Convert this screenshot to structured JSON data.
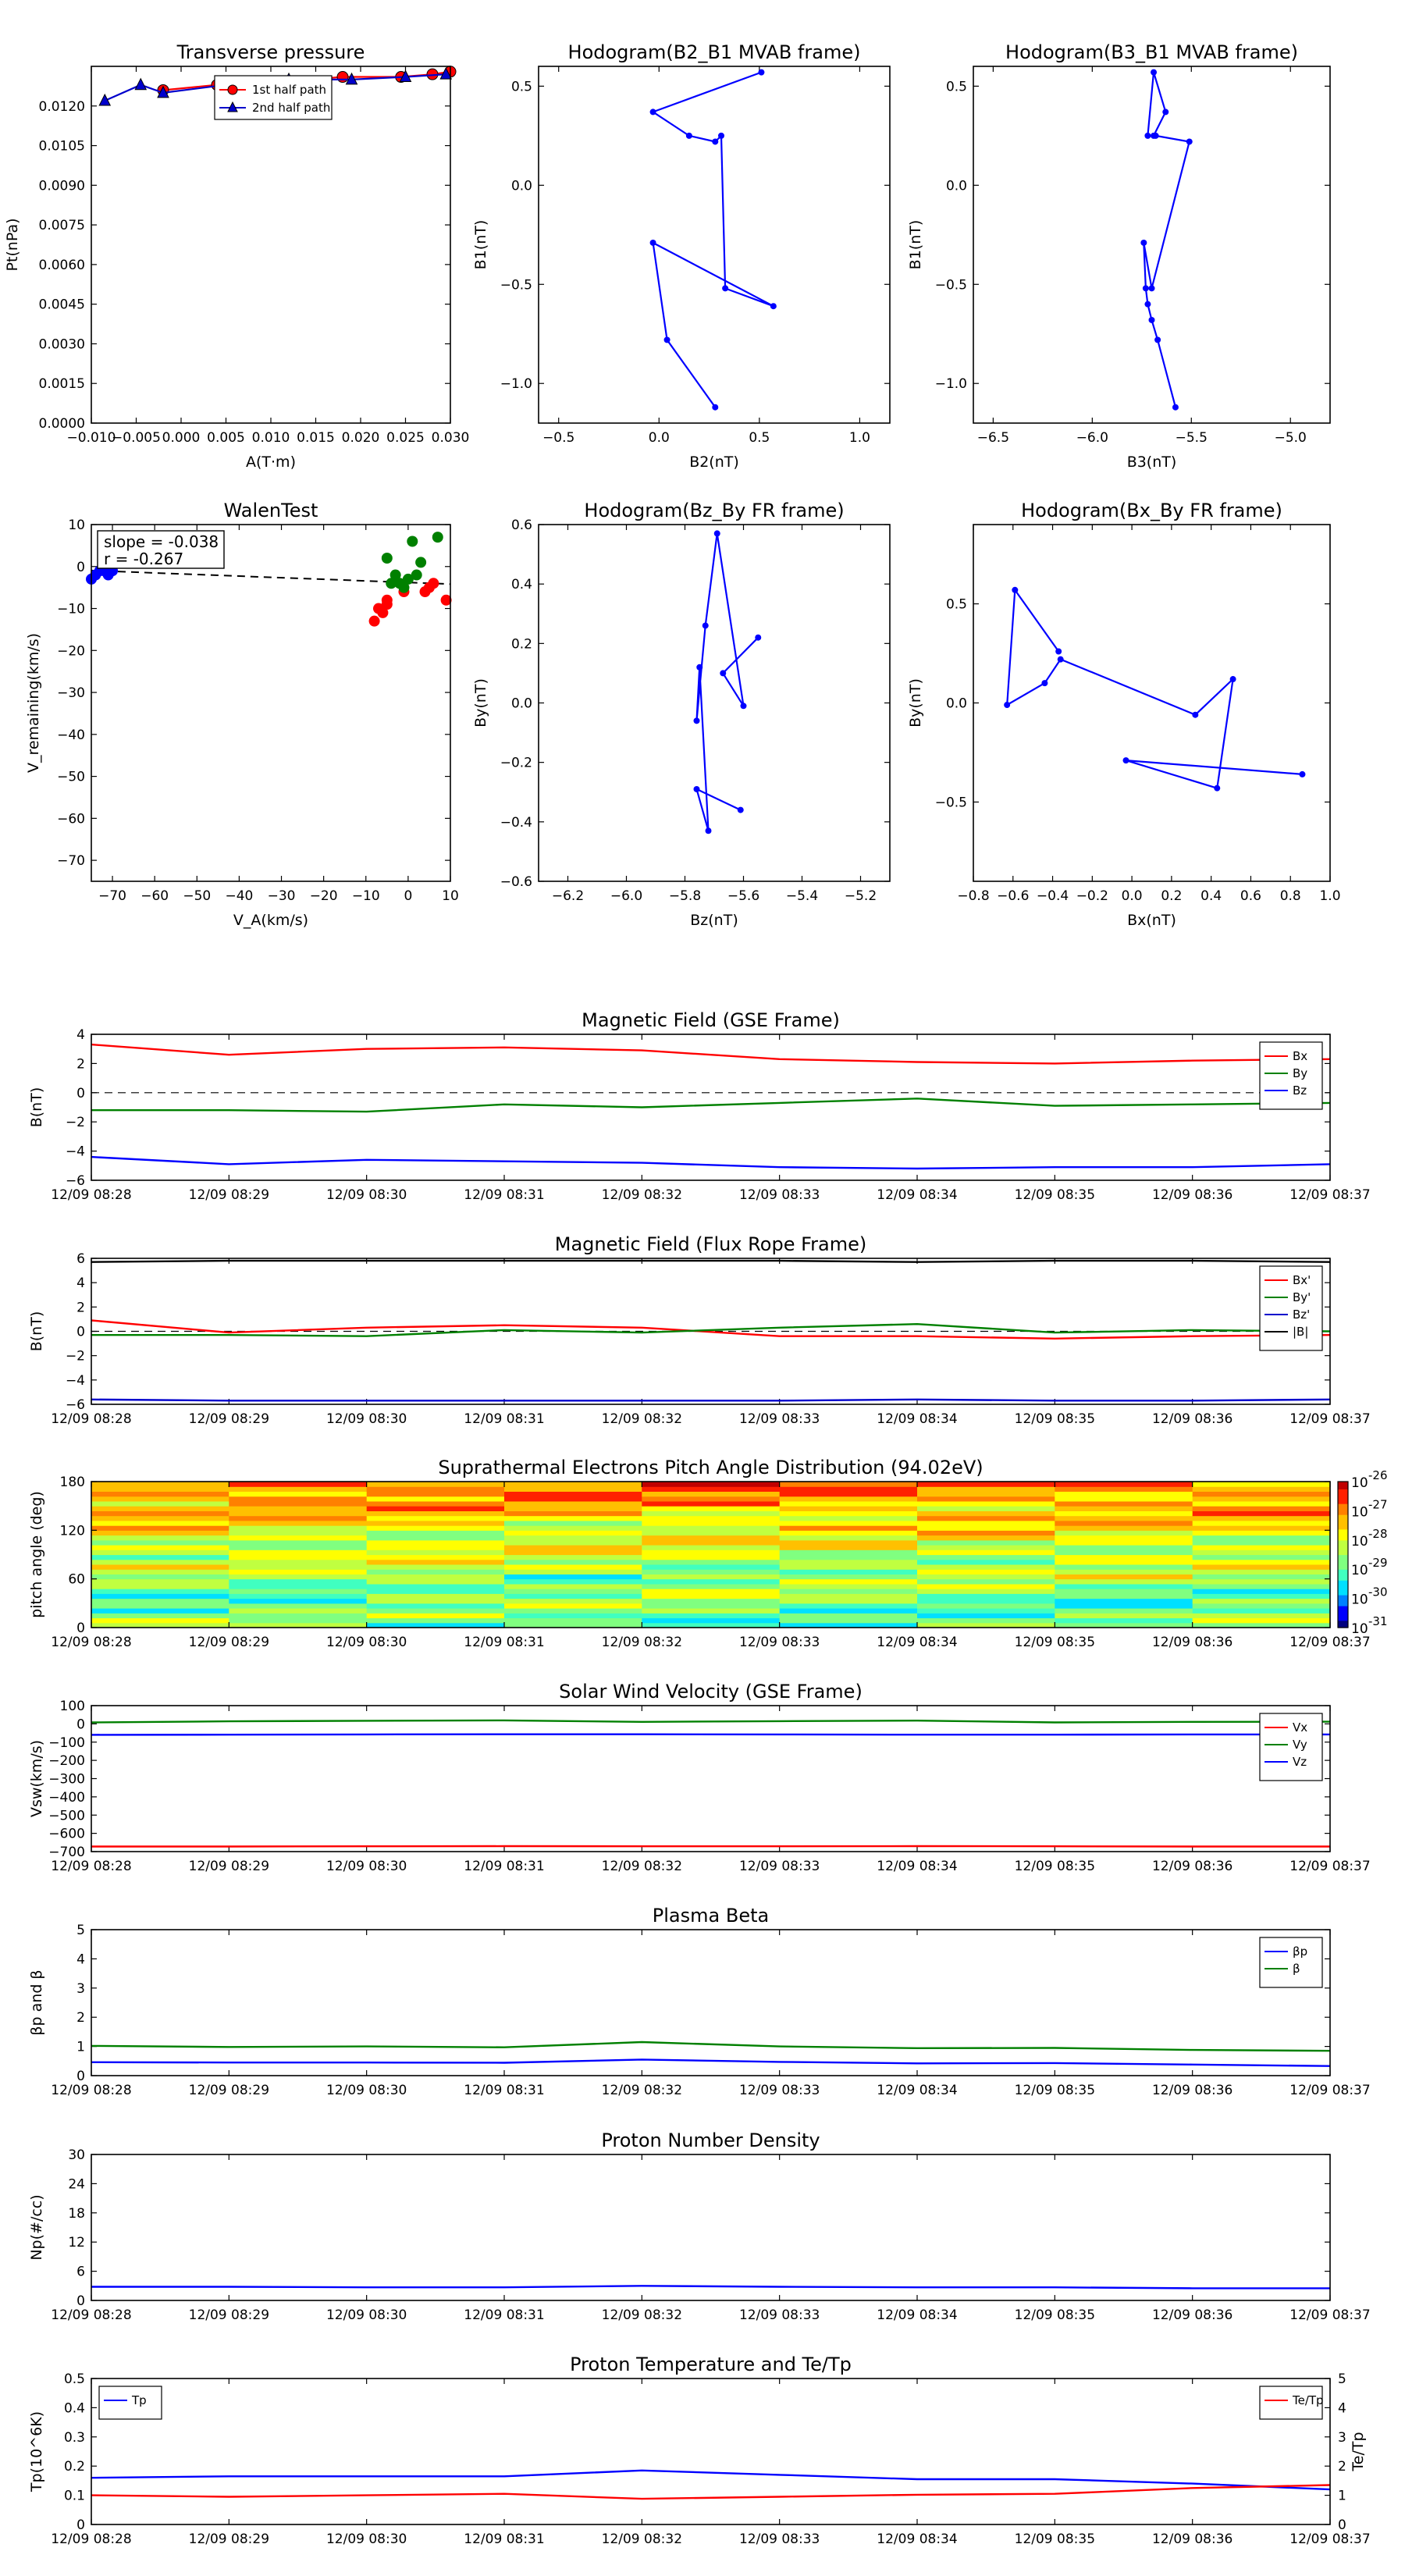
{
  "chart_data": [
    {
      "id": "tp",
      "type": "line",
      "title": "Transverse pressure",
      "xlabel": "A(T·m)",
      "ylabel": "Pt(nPa)",
      "xlim": [
        -0.01,
        0.03
      ],
      "ylim": [
        0,
        0.0135
      ],
      "xticks": [
        -0.01,
        -0.005,
        0.0,
        0.005,
        0.01,
        0.015,
        0.02,
        0.025,
        0.03
      ],
      "xticklabels": [
        "−0.010",
        "−0.005",
        "0.000",
        "0.005",
        "0.010",
        "0.015",
        "0.020",
        "0.025",
        "0.030"
      ],
      "yticks": [
        0,
        0.0015,
        0.003,
        0.0045,
        0.006,
        0.0075,
        0.009,
        0.0105,
        0.012
      ],
      "yticklabels": [
        "0.0000",
        "0.0015",
        "0.0030",
        "0.0045",
        "0.0060",
        "0.0075",
        "0.0090",
        "0.0105",
        "0.0120"
      ],
      "legend_loc": "upper-center",
      "series": [
        {
          "name": "1st half path",
          "color": "#ff0000",
          "marker": "circle",
          "x": [
            -0.002,
            0.004,
            0.011,
            0.018,
            0.0245,
            0.028,
            0.03
          ],
          "y": [
            0.0126,
            0.0128,
            0.0129,
            0.0131,
            0.0131,
            0.0132,
            0.0133
          ]
        },
        {
          "name": "2nd half path",
          "color": "#0000cc",
          "marker": "triangle",
          "x": [
            -0.0085,
            -0.0045,
            -0.002,
            0.005,
            0.012,
            0.019,
            0.025,
            0.0295
          ],
          "y": [
            0.0122,
            0.0128,
            0.0125,
            0.0128,
            0.013,
            0.013,
            0.0131,
            0.0132
          ]
        }
      ]
    },
    {
      "id": "h1",
      "type": "line",
      "title": "Hodogram(B2_B1 MVAB frame)",
      "xlabel": "B2(nT)",
      "ylabel": "B1(nT)",
      "xlim": [
        -0.6,
        1.15
      ],
      "ylim": [
        -1.2,
        0.6
      ],
      "xticks": [
        -0.5,
        0,
        0.5,
        1.0
      ],
      "xticklabels": [
        "−0.5",
        "0.0",
        "0.5",
        "1.0"
      ],
      "yticks": [
        -1.0,
        -0.5,
        0.0,
        0.5
      ],
      "yticklabels": [
        "−1.0",
        "−0.5",
        "0.0",
        "0.5"
      ],
      "series": [
        {
          "name": "hodogram",
          "color": "#0000ff",
          "marker": "dot",
          "x": [
            0.28,
            0.04,
            -0.03,
            0.57,
            0.33,
            0.31,
            0.28,
            0.15,
            -0.03,
            0.51
          ],
          "y": [
            -1.12,
            -0.78,
            -0.29,
            -0.61,
            -0.52,
            0.25,
            0.22,
            0.25,
            0.37,
            0.57
          ]
        }
      ]
    },
    {
      "id": "h2",
      "type": "line",
      "title": "Hodogram(B3_B1 MVAB frame)",
      "xlabel": "B3(nT)",
      "ylabel": "B1(nT)",
      "xlim": [
        -6.6,
        -4.8
      ],
      "ylim": [
        -1.2,
        0.6
      ],
      "xticks": [
        -6.5,
        -6.0,
        -5.5,
        -5.0
      ],
      "xticklabels": [
        "−6.5",
        "−6.0",
        "−5.5",
        "−5.0"
      ],
      "yticks": [
        -1.0,
        -0.5,
        0.0,
        0.5
      ],
      "yticklabels": [
        "−1.0",
        "−0.5",
        "0.0",
        "0.5"
      ],
      "series": [
        {
          "name": "hodogram",
          "color": "#0000ff",
          "marker": "dot",
          "x": [
            -5.58,
            -5.67,
            -5.7,
            -5.72,
            -5.73,
            -5.74,
            -5.7,
            -5.51,
            -5.68,
            -5.72,
            -5.69,
            -5.63,
            -5.69
          ],
          "y": [
            -1.12,
            -0.78,
            -0.68,
            -0.6,
            -0.52,
            -0.29,
            -0.52,
            0.22,
            0.25,
            0.25,
            0.57,
            0.37,
            0.25
          ]
        }
      ]
    },
    {
      "id": "walen",
      "type": "scatter",
      "title": "WalenTest",
      "xlabel": "V_A(km/s)",
      "ylabel": "V_remaining(km/s)",
      "xlim": [
        -75,
        10
      ],
      "ylim": [
        -75,
        10
      ],
      "xticks": [
        -70,
        -60,
        -50,
        -40,
        -30,
        -20,
        -10,
        0,
        10
      ],
      "xticklabels": [
        "−70",
        "−60",
        "−50",
        "−40",
        "−30",
        "−20",
        "−10",
        "0",
        "10"
      ],
      "yticks": [
        -70,
        -60,
        -50,
        -40,
        -30,
        -20,
        -10,
        0,
        10
      ],
      "yticklabels": [
        "−70",
        "−60",
        "−50",
        "−40",
        "−30",
        "−20",
        "−10",
        "0",
        "10"
      ],
      "annotation": [
        "slope = -0.038",
        "r = -0.267"
      ],
      "fit": {
        "slope": -0.038,
        "intercept": -3.8,
        "color": "#000000",
        "style": "dashed"
      },
      "series": [
        {
          "name": "red",
          "color": "#ff0000",
          "x": [
            -8,
            -7,
            -6,
            -5,
            -5,
            -1,
            4,
            5,
            6,
            9
          ],
          "y": [
            -13,
            -10,
            -11,
            -9,
            -8,
            -6,
            -6,
            -5,
            -4,
            -8
          ]
        },
        {
          "name": "green",
          "color": "#008000",
          "x": [
            -5,
            -4,
            -3,
            -2,
            -1,
            0,
            1,
            2,
            3,
            7
          ],
          "y": [
            2,
            -4,
            -2,
            -4,
            -5,
            -3,
            6,
            -2,
            1,
            7
          ]
        },
        {
          "name": "blue",
          "color": "#0000ff",
          "x": [
            -75,
            -72,
            -71,
            -70,
            -73,
            -74
          ],
          "y": [
            -3,
            -1,
            -2,
            -1,
            -1,
            -2
          ]
        }
      ]
    },
    {
      "id": "h3",
      "type": "line",
      "title": "Hodogram(Bz_By FR frame)",
      "xlabel": "Bz(nT)",
      "ylabel": "By(nT)",
      "xlim": [
        -6.3,
        -5.1
      ],
      "ylim": [
        -0.6,
        0.6
      ],
      "xticks": [
        -6.2,
        -6.0,
        -5.8,
        -5.6,
        -5.4,
        -5.2
      ],
      "xticklabels": [
        "−6.2",
        "−6.0",
        "−5.8",
        "−5.6",
        "−5.4",
        "−5.2"
      ],
      "yticks": [
        -0.6,
        -0.4,
        -0.2,
        0.0,
        0.2,
        0.4,
        0.6
      ],
      "yticklabels": [
        "−0.6",
        "−0.4",
        "−0.2",
        "0.0",
        "0.2",
        "0.4",
        "0.6"
      ],
      "series": [
        {
          "name": "hodogram",
          "color": "#0000ff",
          "marker": "dot",
          "x": [
            -5.61,
            -5.76,
            -5.72,
            -5.75,
            -5.76,
            -5.73,
            -5.69,
            -5.6,
            -5.67,
            -5.55
          ],
          "y": [
            -0.36,
            -0.29,
            -0.43,
            0.12,
            -0.06,
            0.26,
            0.57,
            -0.01,
            0.1,
            0.22
          ]
        }
      ]
    },
    {
      "id": "h4",
      "type": "line",
      "title": "Hodogram(Bx_By FR frame)",
      "xlabel": "Bx(nT)",
      "ylabel": "By(nT)",
      "xlim": [
        -0.8,
        1.0
      ],
      "ylim": [
        -0.9,
        0.9
      ],
      "xticks": [
        -0.8,
        -0.6,
        -0.4,
        -0.2,
        0.0,
        0.2,
        0.4,
        0.6,
        0.8,
        1.0
      ],
      "xticklabels": [
        "−0.8",
        "−0.6",
        "−0.4",
        "−0.2",
        "0.0",
        "0.2",
        "0.4",
        "0.6",
        "0.8",
        "1.0"
      ],
      "yticks": [
        -0.5,
        0.0,
        0.5
      ],
      "yticklabels": [
        "−0.5",
        "0.0",
        "0.5"
      ],
      "series": [
        {
          "name": "hodogram",
          "color": "#0000ff",
          "marker": "dot",
          "x": [
            0.86,
            -0.03,
            0.43,
            0.51,
            0.32,
            -0.36,
            -0.44,
            -0.63,
            -0.59,
            -0.37
          ],
          "y": [
            -0.36,
            -0.29,
            -0.43,
            0.12,
            -0.06,
            0.22,
            0.1,
            -0.01,
            0.57,
            0.26
          ]
        }
      ]
    },
    {
      "id": "bgse",
      "type": "line",
      "title": "Magnetic Field (GSE Frame)",
      "ylabel": "B(nT)",
      "ylim": [
        -6,
        4
      ],
      "yticks": [
        -6,
        -4,
        -2,
        0,
        2,
        4
      ],
      "yticklabels": [
        "−6",
        "−4",
        "−2",
        "0",
        "2",
        "4"
      ],
      "categories": [
        "12/09 08:28",
        "12/09 08:29",
        "12/09 08:30",
        "12/09 08:31",
        "12/09 08:32",
        "12/09 08:33",
        "12/09 08:34",
        "12/09 08:35",
        "12/09 08:36",
        "12/09 08:37"
      ],
      "zero_line": true,
      "legend_loc": "upper-right",
      "series": [
        {
          "name": "Bx",
          "color": "#ff0000",
          "values": [
            3.3,
            2.6,
            3.0,
            3.1,
            2.9,
            2.3,
            2.1,
            2.0,
            2.2,
            2.3
          ]
        },
        {
          "name": "By",
          "color": "#008000",
          "values": [
            -1.2,
            -1.2,
            -1.3,
            -0.8,
            -1.0,
            -0.7,
            -0.4,
            -0.9,
            -0.8,
            -0.7
          ]
        },
        {
          "name": "Bz",
          "color": "#0000ff",
          "values": [
            -4.4,
            -4.9,
            -4.6,
            -4.7,
            -4.8,
            -5.1,
            -5.2,
            -5.1,
            -5.1,
            -4.9
          ]
        }
      ]
    },
    {
      "id": "bfr",
      "type": "line",
      "title": "Magnetic Field (Flux Rope Frame)",
      "ylabel": "B(nT)",
      "ylim": [
        -6,
        6
      ],
      "yticks": [
        -6,
        -4,
        -2,
        0,
        2,
        4,
        6
      ],
      "yticklabels": [
        "−6",
        "−4",
        "−2",
        "0",
        "2",
        "4",
        "6"
      ],
      "categories": [
        "12/09 08:28",
        "12/09 08:29",
        "12/09 08:30",
        "12/09 08:31",
        "12/09 08:32",
        "12/09 08:33",
        "12/09 08:34",
        "12/09 08:35",
        "12/09 08:36",
        "12/09 08:37"
      ],
      "zero_line": true,
      "legend_loc": "upper-right",
      "series": [
        {
          "name": "Bx'",
          "color": "#ff0000",
          "values": [
            0.9,
            -0.1,
            0.3,
            0.5,
            0.3,
            -0.4,
            -0.4,
            -0.6,
            -0.4,
            -0.3
          ]
        },
        {
          "name": "By'",
          "color": "#008000",
          "values": [
            -0.3,
            -0.3,
            -0.4,
            0.1,
            -0.1,
            0.3,
            0.6,
            -0.1,
            0.1,
            0.0
          ]
        },
        {
          "name": "Bz'",
          "color": "#0000cc",
          "values": [
            -5.6,
            -5.7,
            -5.7,
            -5.7,
            -5.7,
            -5.7,
            -5.6,
            -5.7,
            -5.7,
            -5.6
          ]
        },
        {
          "name": "|B|",
          "color": "#000000",
          "values": [
            5.7,
            5.8,
            5.8,
            5.8,
            5.8,
            5.8,
            5.7,
            5.8,
            5.8,
            5.7
          ]
        }
      ]
    },
    {
      "id": "pad",
      "type": "heatmap",
      "title": "Suprathermal Electrons Pitch Angle Distribution (94.02eV)",
      "ylabel": "pitch angle (deg)",
      "ylim": [
        0,
        180
      ],
      "yticks": [
        0,
        60,
        120,
        180
      ],
      "yticklabels": [
        "0",
        "60",
        "120",
        "180"
      ],
      "categories": [
        "12/09 08:28",
        "12/09 08:29",
        "12/09 08:30",
        "12/09 08:31",
        "12/09 08:32",
        "12/09 08:33",
        "12/09 08:34",
        "12/09 08:35",
        "12/09 08:36",
        "12/09 08:37"
      ],
      "colorbar": {
        "min_exp": -31,
        "max_exp": -26,
        "labels": [
          "10",
          "10",
          "10",
          "10",
          "10",
          "10"
        ],
        "exponents": [
          "-31",
          "-30",
          "-29",
          "-28",
          "-27",
          "-26"
        ]
      }
    },
    {
      "id": "vsw",
      "type": "line",
      "title": "Solar Wind Velocity (GSE Frame)",
      "ylabel": "Vsw(km/s)",
      "ylim": [
        -700,
        100
      ],
      "yticks": [
        -700,
        -600,
        -500,
        -400,
        -300,
        -200,
        -100,
        0,
        100
      ],
      "yticklabels": [
        "−700",
        "−600",
        "−500",
        "−400",
        "−300",
        "−200",
        "−100",
        "0",
        "100"
      ],
      "categories": [
        "12/09 08:28",
        "12/09 08:29",
        "12/09 08:30",
        "12/09 08:31",
        "12/09 08:32",
        "12/09 08:33",
        "12/09 08:34",
        "12/09 08:35",
        "12/09 08:36",
        "12/09 08:37"
      ],
      "legend_loc": "upper-right",
      "series": [
        {
          "name": "Vx",
          "color": "#ff0000",
          "values": [
            -672,
            -672,
            -671,
            -670,
            -671,
            -671,
            -670,
            -671,
            -672,
            -672
          ]
        },
        {
          "name": "Vy",
          "color": "#008000",
          "values": [
            8,
            14,
            17,
            19,
            11,
            15,
            18,
            8,
            11,
            12
          ]
        },
        {
          "name": "Vz",
          "color": "#0000ff",
          "values": [
            -60,
            -59,
            -58,
            -57,
            -57,
            -58,
            -59,
            -59,
            -58,
            -58
          ]
        }
      ]
    },
    {
      "id": "beta",
      "type": "line",
      "title": "Plasma Beta",
      "ylabel": "βp and β",
      "ylim": [
        0,
        5
      ],
      "yticks": [
        0,
        1,
        2,
        3,
        4,
        5
      ],
      "yticklabels": [
        "0",
        "1",
        "2",
        "3",
        "4",
        "5"
      ],
      "categories": [
        "12/09 08:28",
        "12/09 08:29",
        "12/09 08:30",
        "12/09 08:31",
        "12/09 08:32",
        "12/09 08:33",
        "12/09 08:34",
        "12/09 08:35",
        "12/09 08:36",
        "12/09 08:37"
      ],
      "legend_loc": "upper-right",
      "series": [
        {
          "name": "βp",
          "color": "#0000ff",
          "values": [
            0.46,
            0.45,
            0.45,
            0.44,
            0.55,
            0.47,
            0.42,
            0.43,
            0.38,
            0.33
          ]
        },
        {
          "name": "β",
          "color": "#008000",
          "values": [
            1.02,
            0.98,
            1.0,
            0.97,
            1.15,
            1.0,
            0.94,
            0.95,
            0.88,
            0.85
          ]
        }
      ]
    },
    {
      "id": "np",
      "type": "line",
      "title": "Proton Number Density",
      "ylabel": "Np(#/cc)",
      "ylim": [
        0,
        30
      ],
      "yticks": [
        0,
        6,
        12,
        18,
        24,
        30
      ],
      "yticklabels": [
        "0",
        "6",
        "12",
        "18",
        "24",
        "30"
      ],
      "categories": [
        "12/09 08:28",
        "12/09 08:29",
        "12/09 08:30",
        "12/09 08:31",
        "12/09 08:32",
        "12/09 08:33",
        "12/09 08:34",
        "12/09 08:35",
        "12/09 08:36",
        "12/09 08:37"
      ],
      "series": [
        {
          "name": "Np",
          "color": "#0000ff",
          "values": [
            2.8,
            2.8,
            2.7,
            2.7,
            3.0,
            2.8,
            2.7,
            2.7,
            2.5,
            2.5
          ]
        }
      ]
    },
    {
      "id": "tp2",
      "type": "line",
      "title": "Proton Temperature and Te/Tp",
      "ylabel": "Tp(10^6K)",
      "ylabel_right": "Te/Tp",
      "ylim": [
        0,
        0.5
      ],
      "yticks": [
        0,
        0.1,
        0.2,
        0.3,
        0.4,
        0.5
      ],
      "yticklabels": [
        "0",
        "0.1",
        "0.2",
        "0.3",
        "0.4",
        "0.5"
      ],
      "ylim_right": [
        0,
        5
      ],
      "yticks_right": [
        0,
        1,
        2,
        3,
        4,
        5
      ],
      "yticklabels_right": [
        "0",
        "1",
        "2",
        "3",
        "4",
        "5"
      ],
      "categories": [
        "12/09 08:28",
        "12/09 08:29",
        "12/09 08:30",
        "12/09 08:31",
        "12/09 08:32",
        "12/09 08:33",
        "12/09 08:34",
        "12/09 08:35",
        "12/09 08:36",
        "12/09 08:37"
      ],
      "series": [
        {
          "name": "Tp",
          "color": "#0000ff",
          "axis": "left",
          "values": [
            0.16,
            0.165,
            0.165,
            0.165,
            0.185,
            0.17,
            0.155,
            0.155,
            0.14,
            0.12
          ]
        },
        {
          "name": "Te/Tp",
          "color": "#ff0000",
          "axis": "right",
          "values": [
            1.0,
            0.95,
            1.0,
            1.05,
            0.88,
            0.95,
            1.02,
            1.05,
            1.25,
            1.35
          ]
        }
      ]
    }
  ]
}
